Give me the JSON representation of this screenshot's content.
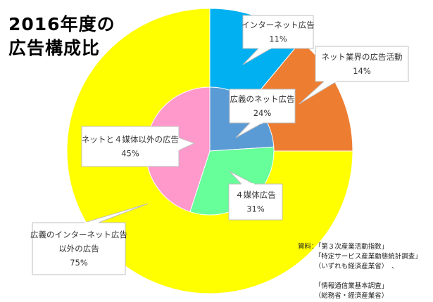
{
  "title_line1": "2016年度の",
  "title_line2": "広告構成比",
  "chart_data": {
    "type": "pie",
    "subtype": "nested-donut",
    "outer_ring": {
      "slices": [
        {
          "label": "インターネット広告",
          "value": 11,
          "display": "11%",
          "color": "#00B0F0"
        },
        {
          "label": "ネット業界の広告活動",
          "value": 14,
          "display": "14%",
          "color": "#ED7D31"
        },
        {
          "label": "広義のインターネット広告以外の広告",
          "value": 75,
          "display": "75%",
          "color": "#FFFF00"
        }
      ]
    },
    "inner_pie": {
      "slices": [
        {
          "label": "広義のネット広告",
          "value": 24,
          "display": "24%",
          "color": "#5B9BD5"
        },
        {
          "label": "４媒体広告",
          "value": 31,
          "display": "31%",
          "color": "#66FF99"
        },
        {
          "label": "ネットと４媒体以外の広告",
          "value": 45,
          "display": "45%",
          "color": "#FF99CC"
        }
      ]
    },
    "callouts": {
      "internet_ad": {
        "lines": [
          "インターネット広告",
          "11%"
        ]
      },
      "net_industry": {
        "lines": [
          "ネット業界の広告活動",
          "14%"
        ]
      },
      "broad_net": {
        "lines": [
          "広義のネット広告",
          "24%"
        ]
      },
      "net_and_4media_other": {
        "lines": [
          "ネットと４媒体以外の広告",
          "45%"
        ]
      },
      "four_media": {
        "lines": [
          "４媒体広告",
          "31%"
        ]
      },
      "outside_broad": {
        "lines": [
          "広義のインターネット広告",
          "以外の広告",
          "75%"
        ]
      }
    }
  },
  "source_note": "資料：「第３次産業活動指数」\n　　　「特定サービス産業動態統計調査」\n　　　（いずれも経済産業省）　、\n\n　　　「情報通信業基本調査」\n　　　（総務省・経済産業省）"
}
